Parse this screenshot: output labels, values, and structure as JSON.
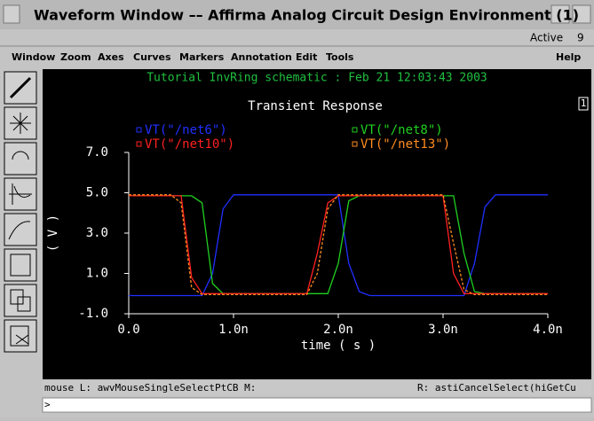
{
  "window": {
    "title": "Waveform Window –– Affirma Analog Circuit Design Environment (1)",
    "status": "Active",
    "count": "9"
  },
  "menu": {
    "items": [
      "Window",
      "Zoom",
      "Axes",
      "Curves",
      "Markers",
      "Annotation",
      "Edit",
      "Tools"
    ],
    "help": "Help"
  },
  "chart_data": {
    "type": "line",
    "header": "Tutorial InvRing schematic : Feb 21 12:03:43 2003",
    "title": "Transient Response",
    "subwindow": "1",
    "xlabel": "time ( s )",
    "ylabel": "( V )",
    "x": [
      0,
      0.1,
      0.2,
      0.3,
      0.4,
      0.5,
      0.6,
      0.7,
      0.8,
      0.9,
      1.0,
      1.1,
      1.2,
      1.3,
      1.4,
      1.5,
      1.6,
      1.7,
      1.8,
      1.9,
      2.0,
      2.1,
      2.2,
      2.3,
      2.4,
      2.5,
      2.6,
      2.7,
      2.8,
      2.9,
      3.0,
      3.1,
      3.2,
      3.3,
      3.4,
      3.5,
      3.6,
      3.7,
      3.8,
      3.9,
      4.0
    ],
    "xlim": [
      0,
      4
    ],
    "ylim": [
      -1,
      7
    ],
    "xticks": [
      {
        "value": 0,
        "label": "0.0"
      },
      {
        "value": 1,
        "label": "1.0n"
      },
      {
        "value": 2,
        "label": "2.0n"
      },
      {
        "value": 3,
        "label": "3.0n"
      },
      {
        "value": 4,
        "label": "4.0n"
      }
    ],
    "yticks": [
      {
        "value": -1,
        "label": "-1.0"
      },
      {
        "value": 1,
        "label": "1.0"
      },
      {
        "value": 3,
        "label": "3.0"
      },
      {
        "value": 5,
        "label": "5.0"
      },
      {
        "value": 7,
        "label": "7.0"
      }
    ],
    "series": [
      {
        "name": "VT(\"/net6\")",
        "color": "#2030ff",
        "values": [
          -0.1,
          -0.1,
          -0.1,
          -0.1,
          -0.1,
          -0.1,
          -0.1,
          -0.1,
          1.0,
          4.2,
          4.9,
          4.9,
          4.9,
          4.9,
          4.9,
          4.9,
          4.9,
          4.9,
          4.9,
          4.9,
          4.9,
          1.5,
          0.1,
          -0.1,
          -0.1,
          -0.1,
          -0.1,
          -0.1,
          -0.1,
          -0.1,
          -0.1,
          -0.1,
          -0.1,
          1.5,
          4.3,
          4.9,
          4.9,
          4.9,
          4.9,
          4.9,
          4.9
        ]
      },
      {
        "name": "VT(\"/net8\")",
        "color": "#20d020",
        "values": [
          4.85,
          4.85,
          4.85,
          4.85,
          4.85,
          4.85,
          4.85,
          4.5,
          0.5,
          0,
          0,
          0,
          0,
          0,
          0,
          0,
          0,
          0,
          0,
          0,
          1.5,
          4.6,
          4.85,
          4.85,
          4.85,
          4.85,
          4.85,
          4.85,
          4.85,
          4.85,
          4.85,
          4.85,
          2.0,
          0.1,
          0,
          0,
          0,
          0,
          0,
          0,
          0
        ]
      },
      {
        "name": "VT(\"/net10\")",
        "color": "#ff2020",
        "values": [
          4.85,
          4.85,
          4.85,
          4.85,
          4.85,
          4.85,
          0.8,
          0,
          0,
          0,
          0,
          0,
          0,
          0,
          0,
          0,
          0,
          0,
          2.0,
          4.5,
          4.85,
          4.85,
          4.85,
          4.85,
          4.85,
          4.85,
          4.85,
          4.85,
          4.85,
          4.85,
          4.85,
          1.0,
          0,
          0,
          0,
          0,
          0,
          0,
          0,
          0,
          0
        ]
      },
      {
        "name": "VT(\"/net13\")",
        "color": "#ff8c20",
        "values": [
          4.9,
          4.9,
          4.9,
          4.9,
          4.9,
          4.5,
          0.3,
          -0.05,
          -0.05,
          -0.05,
          -0.05,
          -0.05,
          -0.05,
          -0.05,
          -0.05,
          -0.05,
          -0.05,
          -0.05,
          1.0,
          4.2,
          4.9,
          4.9,
          4.9,
          4.9,
          4.9,
          4.9,
          4.9,
          4.9,
          4.9,
          4.9,
          4.9,
          2.5,
          0.2,
          -0.05,
          -0.05,
          -0.05,
          -0.05,
          -0.05,
          -0.05,
          -0.05,
          -0.05
        ]
      }
    ]
  },
  "statusbar": {
    "left": "mouse L: awvMouseSingleSelectPtCB M:",
    "right": "R: astiCancelSelect(hiGetCu",
    "prompt": ">"
  }
}
